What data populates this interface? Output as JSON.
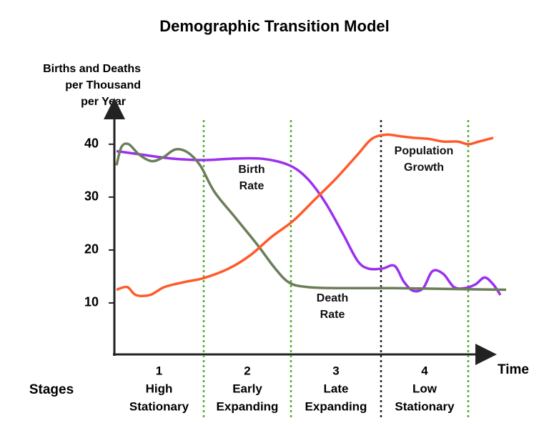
{
  "chart_data": {
    "type": "line",
    "title": "Demographic Transition Model",
    "ylabel": [
      "Births and Deaths",
      "per Thousand",
      "per Year"
    ],
    "xlabel": "Time",
    "stages_label": "Stages",
    "stages": [
      [
        "1",
        "High",
        "Stationary"
      ],
      [
        "2",
        "Early",
        "Expanding"
      ],
      [
        "3",
        "Late",
        "Expanding"
      ],
      [
        "4",
        "Low",
        "Stationary"
      ]
    ],
    "stage_boundaries": [
      {
        "x": 25,
        "color": "#4caf28"
      },
      {
        "x": 49.4,
        "color": "#4caf28"
      },
      {
        "x": 74.6,
        "color": "#222222"
      },
      {
        "x": 99,
        "color": "#4caf28"
      }
    ],
    "xlim": [
      0,
      110
    ],
    "ylim": [
      0,
      47
    ],
    "yticks": [
      10,
      20,
      30,
      40
    ],
    "series": [
      {
        "name": "Birth Rate",
        "color": "#9b30ef",
        "x": [
          0.6,
          8,
          16,
          25,
          34,
          42,
          49,
          54,
          59,
          64,
          68,
          71,
          75,
          78.4,
          81,
          83.6,
          86.4,
          89,
          92,
          95,
          98,
          101,
          103.6,
          106,
          108
        ],
        "values": [
          38.7,
          38,
          37.3,
          37,
          37.3,
          37.2,
          36,
          33.5,
          29,
          23,
          18,
          16.5,
          16.5,
          17,
          14,
          12.3,
          12.8,
          16,
          15.5,
          13,
          12.8,
          13.5,
          14.8,
          13.5,
          11.5
        ]
      },
      {
        "name": "Death Rate",
        "color": "#6b7d5a",
        "x": [
          0.6,
          2,
          4,
          7,
          10.4,
          13.6,
          17,
          20.4,
          24,
          28,
          34,
          40,
          45,
          49,
          54,
          62,
          78,
          98,
          109.6
        ],
        "values": [
          36,
          39.5,
          40,
          38,
          36.8,
          37.5,
          39,
          38.5,
          36,
          31,
          26,
          21,
          16.5,
          13.8,
          13,
          12.8,
          12.8,
          12.6,
          12.5
        ]
      },
      {
        "name": "Population Growth",
        "color": "#ff5a2a",
        "x": [
          0.6,
          3.6,
          6,
          10,
          14,
          20,
          25,
          32,
          38,
          44,
          50,
          56,
          62,
          68,
          72,
          76,
          80,
          84,
          88,
          92,
          96,
          99,
          102,
          106
        ],
        "values": [
          12.5,
          13,
          11.5,
          11.5,
          13,
          14,
          14.7,
          16.5,
          19,
          22.5,
          25.5,
          29.5,
          33.5,
          38,
          41,
          41.8,
          41.5,
          41.2,
          41,
          40.5,
          40.5,
          40,
          40.5,
          41.2
        ]
      }
    ]
  }
}
